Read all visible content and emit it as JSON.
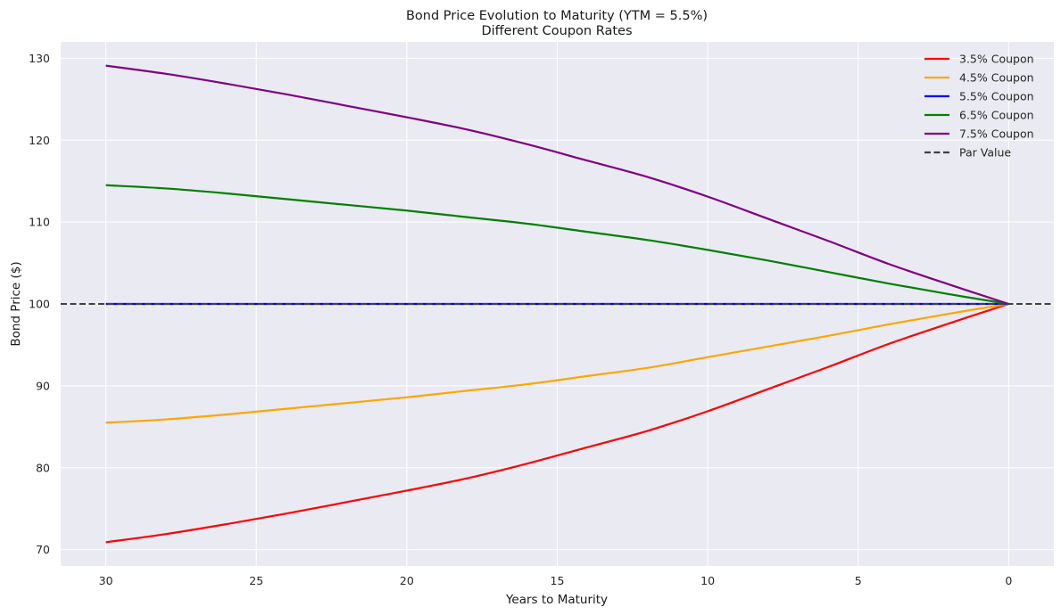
{
  "chart_data": {
    "type": "line",
    "title": "Bond Price Evolution to Maturity (YTM = 5.5%)",
    "subtitle": "Different Coupon Rates",
    "xlabel": "Years to Maturity",
    "ylabel": "Bond Price ($)",
    "xlim": [
      31.5,
      -1.5
    ],
    "ylim": [
      68,
      132
    ],
    "x_reversed": true,
    "xticks": [
      30,
      25,
      20,
      15,
      10,
      5,
      0
    ],
    "yticks": [
      70,
      80,
      90,
      100,
      110,
      120,
      130
    ],
    "grid": true,
    "legend_position": "top-right",
    "x": [
      30,
      28,
      26,
      24,
      22,
      20,
      18,
      16,
      14,
      12,
      10,
      8,
      6,
      4,
      2,
      0
    ],
    "series": [
      {
        "name": "3.5% Coupon",
        "color": "#ff0000",
        "style": "solid",
        "values": [
          70.9,
          71.9,
          73.1,
          74.4,
          75.8,
          77.2,
          78.7,
          80.5,
          82.5,
          84.5,
          86.9,
          89.6,
          92.3,
          95.1,
          97.6,
          100.0
        ]
      },
      {
        "name": "4.5% Coupon",
        "color": "#ffa500",
        "style": "solid",
        "values": [
          85.5,
          85.9,
          86.5,
          87.2,
          87.9,
          88.6,
          89.4,
          90.2,
          91.2,
          92.2,
          93.5,
          94.8,
          96.1,
          97.5,
          98.8,
          100.0
        ]
      },
      {
        "name": "5.5% Coupon",
        "color": "#0000ff",
        "style": "solid",
        "values": [
          100,
          100,
          100,
          100,
          100,
          100,
          100,
          100,
          100,
          100,
          100,
          100,
          100,
          100,
          100,
          100
        ]
      },
      {
        "name": "6.5% Coupon",
        "color": "#008000",
        "style": "solid",
        "values": [
          114.5,
          114.1,
          113.5,
          112.8,
          112.1,
          111.4,
          110.6,
          109.8,
          108.8,
          107.8,
          106.6,
          105.3,
          103.9,
          102.5,
          101.2,
          100.0
        ]
      },
      {
        "name": "7.5% Coupon",
        "color": "#800080",
        "style": "solid",
        "values": [
          129.1,
          128.1,
          126.9,
          125.6,
          124.2,
          122.8,
          121.3,
          119.5,
          117.5,
          115.5,
          113.1,
          110.4,
          107.7,
          104.9,
          102.4,
          100.0
        ]
      }
    ],
    "reference_line": {
      "name": "Par Value",
      "y": 100,
      "color": "#404040",
      "style": "dashed"
    }
  }
}
